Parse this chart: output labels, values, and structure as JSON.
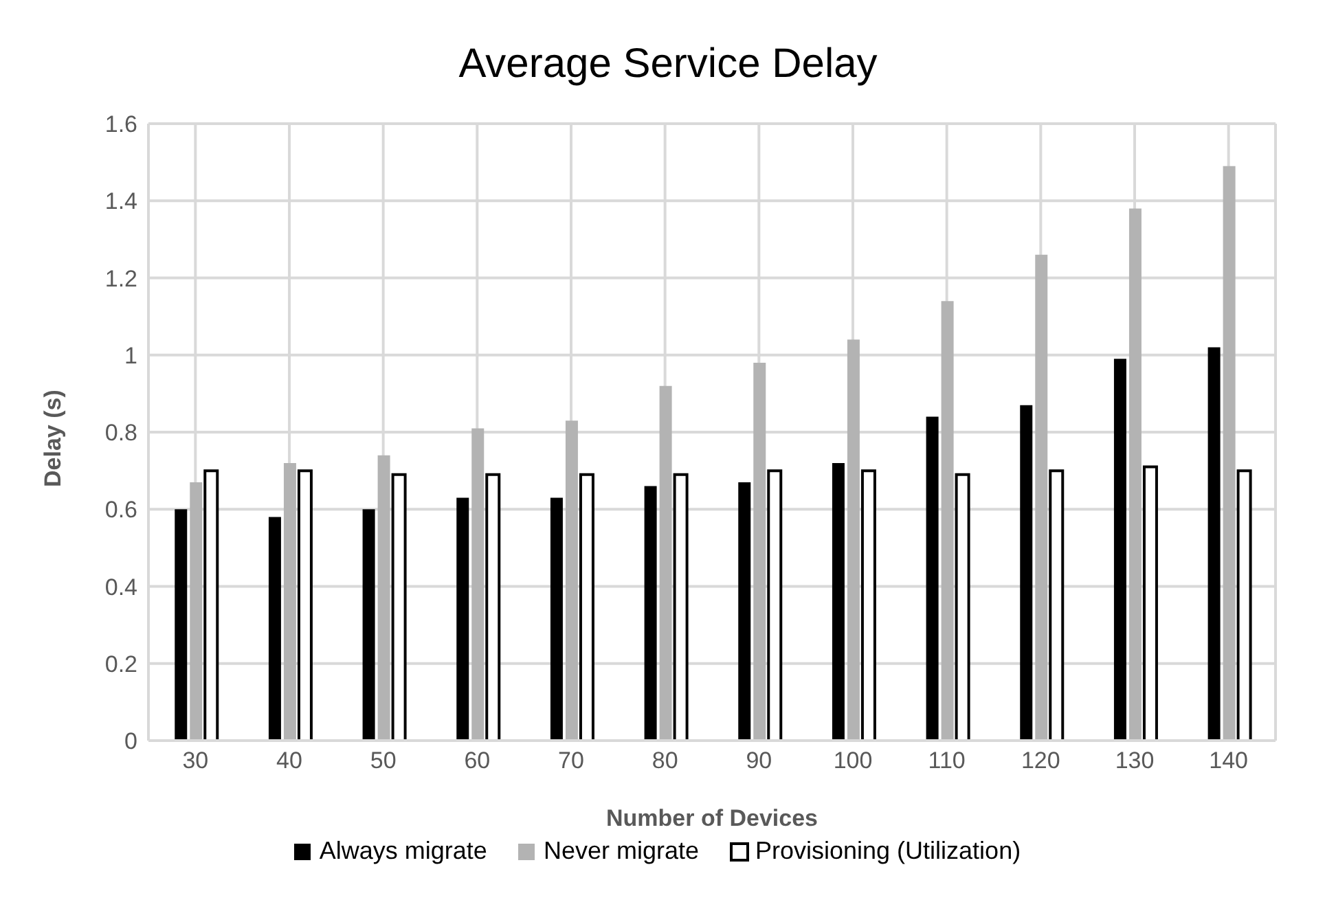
{
  "chart_data": {
    "type": "bar",
    "title": "Average Service Delay",
    "xlabel": "Number of Devices",
    "ylabel": "Delay (s)",
    "categories": [
      "30",
      "40",
      "50",
      "60",
      "70",
      "80",
      "90",
      "100",
      "110",
      "120",
      "130",
      "140"
    ],
    "series": [
      {
        "name": "Always migrate",
        "color": "#000000",
        "values": [
          0.6,
          0.58,
          0.6,
          0.63,
          0.63,
          0.66,
          0.67,
          0.72,
          0.84,
          0.87,
          0.99,
          1.02
        ]
      },
      {
        "name": "Never migrate",
        "color": "#b3b3b3",
        "values": [
          0.67,
          0.72,
          0.74,
          0.81,
          0.83,
          0.92,
          0.98,
          1.04,
          1.14,
          1.26,
          1.38,
          1.49
        ]
      },
      {
        "name": "Provisioning (Utilization)",
        "color": "#ffffff",
        "values": [
          0.7,
          0.7,
          0.69,
          0.69,
          0.69,
          0.69,
          0.7,
          0.7,
          0.69,
          0.7,
          0.71,
          0.7
        ]
      }
    ],
    "ylim": [
      0,
      1.6
    ],
    "yticks": [
      0,
      0.2,
      0.4,
      0.6,
      0.8,
      1,
      1.2,
      1.4,
      1.6
    ],
    "grid": true,
    "legend": "bottom"
  }
}
